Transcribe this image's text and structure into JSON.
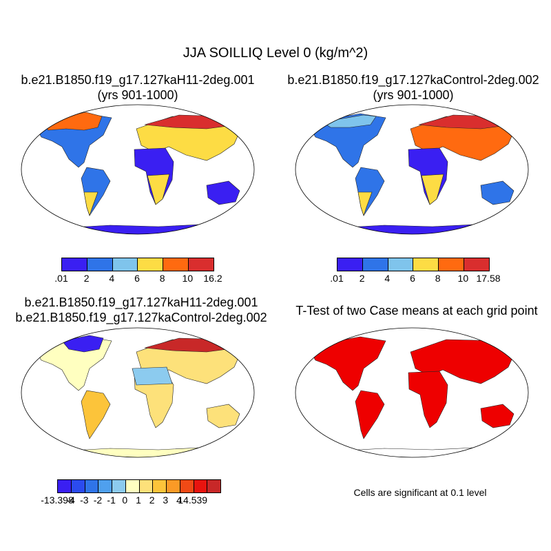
{
  "main_title": "JJA SOILLIQ Level 0 (kg/m^2)",
  "panels": [
    {
      "title_line1": "b.e21.B1850.f19_g17.127kaH11-2deg.001",
      "title_line2": "(yrs 901-1000)",
      "colorbar": {
        "colors": [
          "#3a1ff2",
          "#2f74e8",
          "#7fc4ec",
          "#fddc44",
          "#ff6a10",
          "#d92e2e"
        ],
        "ticks": [
          ".01",
          "2",
          "4",
          "6",
          "8",
          "10",
          "16.2"
        ]
      }
    },
    {
      "title_line1": "b.e21.B1850.f19_g17.127kaControl-2deg.002",
      "title_line2": "(yrs 901-1000)",
      "colorbar": {
        "colors": [
          "#3a1ff2",
          "#2f74e8",
          "#7fc4ec",
          "#fddc44",
          "#ff6a10",
          "#d92e2e"
        ],
        "ticks": [
          ".01",
          "2",
          "4",
          "6",
          "8",
          "10",
          "17.58"
        ]
      }
    },
    {
      "title_line1": "b.e21.B1850.f19_g17.127kaH11-2deg.001",
      "title_line2": "b.e21.B1850.f19_g17.127kaControl-2deg.002",
      "colorbar": {
        "colors": [
          "#3a1ff2",
          "#2b4bef",
          "#2f74e8",
          "#4fa0ee",
          "#8ccbef",
          "#ffffc0",
          "#fde17a",
          "#fcc43a",
          "#fb9a26",
          "#f04a16",
          "#e8140f",
          "#c82828"
        ],
        "ticks": [
          "-13.398",
          "-4",
          "-3",
          "-2",
          "-1",
          "0",
          "1",
          "2",
          "3",
          "4",
          "14.539"
        ]
      }
    },
    {
      "title_line1": "T-Test of two Case means at each grid point",
      "note": "Cells are significant at 0.1 level",
      "sig_color": "#ee0000"
    }
  ]
}
